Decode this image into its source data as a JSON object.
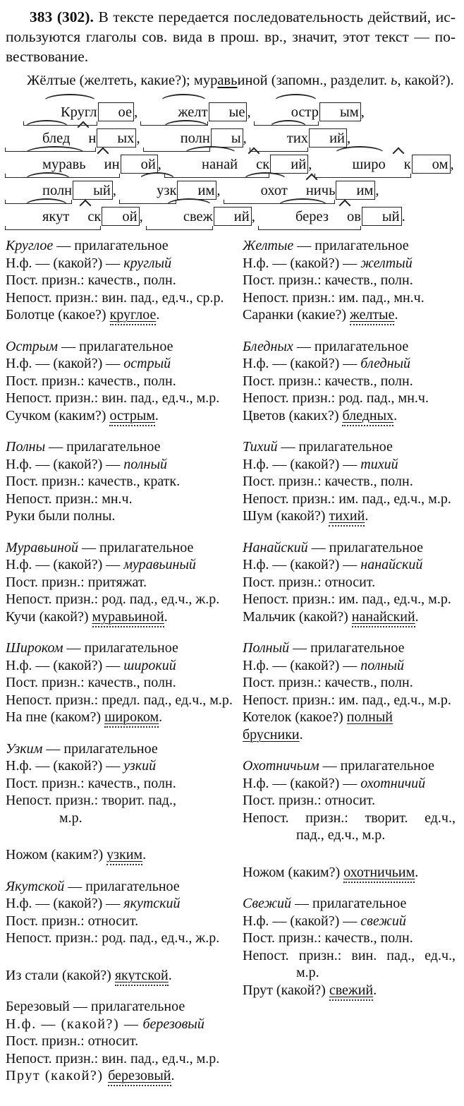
{
  "page": {
    "background": "#ffffff",
    "text_color": "#111111"
  },
  "intro": {
    "number": "383 (302).",
    "lines": [
      " В тексте передается последовательность действий, ис-",
      "пользуются глаголы сов. вида в прош. вр., значит, этот текст — по-",
      "вествование."
    ]
  },
  "hint": {
    "segments": [
      {
        "t": "Жёлтые (желтеть, какие?); мур"
      },
      {
        "t": "ав",
        "u": true
      },
      {
        "t": "ь",
        "u": true
      },
      {
        "t": "иной (запомн., разделит. "
      },
      {
        "t": "ь",
        "i": true
      },
      {
        "t": ", какой?)."
      }
    ]
  },
  "morph_words": {
    "items": [
      {
        "parts": [
          [
            "Кругл",
            "root"
          ],
          [
            "ое",
            "end"
          ]
        ],
        "sep": ", "
      },
      {
        "parts": [
          [
            "желт",
            "root"
          ],
          [
            "ые",
            "end"
          ]
        ],
        "sep": ", "
      },
      {
        "parts": [
          [
            "остр",
            "root"
          ],
          [
            "ым",
            "end"
          ]
        ],
        "sep": ", "
      },
      {
        "parts": [
          [
            "блед",
            "root"
          ],
          [
            "н",
            "suf"
          ],
          [
            "ых",
            "end"
          ]
        ],
        "sep": ", "
      },
      {
        "parts": [
          [
            "полн",
            "root"
          ],
          [
            "ы",
            "end"
          ]
        ],
        "sep": ", "
      },
      {
        "parts": [
          [
            "тих",
            "root"
          ],
          [
            "ий",
            "end"
          ]
        ],
        "sep": ", "
      },
      {
        "parts": [
          [
            "муравь",
            "root"
          ],
          [
            "ин",
            "suf"
          ],
          [
            "ой",
            "end"
          ]
        ],
        "sep": ", "
      },
      {
        "parts": [
          [
            "нанай",
            "root"
          ],
          [
            "ск",
            "suf"
          ],
          [
            "ий",
            "end"
          ]
        ],
        "sep": ", "
      },
      {
        "parts": [
          [
            "широ",
            "root"
          ],
          [
            "к",
            "suf"
          ],
          [
            "ом",
            "end"
          ]
        ],
        "sep": ", "
      },
      {
        "parts": [
          [
            "полн",
            "root"
          ],
          [
            "ый",
            "end"
          ]
        ],
        "sep": ", "
      },
      {
        "parts": [
          [
            "узк",
            "root"
          ],
          [
            "им",
            "end"
          ]
        ],
        "sep": ", "
      },
      {
        "parts": [
          [
            "охот",
            "root"
          ],
          [
            "ничь",
            "suf"
          ],
          [
            "им",
            "end"
          ]
        ],
        "sep": ", "
      },
      {
        "parts": [
          [
            "якут",
            "root"
          ],
          [
            "ск",
            "suf"
          ],
          [
            "ой",
            "end"
          ]
        ],
        "sep": ", "
      },
      {
        "parts": [
          [
            "свеж",
            "root"
          ],
          [
            "ий",
            "end"
          ]
        ],
        "sep": ", "
      },
      {
        "parts": [
          [
            "берез",
            "root"
          ],
          [
            "ов",
            "suf"
          ],
          [
            "ый",
            "end"
          ]
        ],
        "sep": "."
      }
    ]
  },
  "analysis": {
    "left": [
      {
        "word": "Круглое",
        "pos": "— прилагательное",
        "nf_label": "Н.ф. — (какой?) —",
        "nf": "круглый",
        "attrs": [
          {
            "t": "Пост. призн.: качеств., полн."
          },
          {
            "t": "Непост. призн.: вин. пад., ед.ч., ср.р."
          }
        ],
        "example": {
          "pre": "Болотце (какое?) ",
          "wavy": "круглое",
          "post": "."
        }
      },
      {
        "word": "Острым",
        "pos": "— прилагательное",
        "nf_label": "Н.ф. — (какой?) —",
        "nf": "острый",
        "attrs": [
          {
            "t": "Пост. призн.: качеств., полн."
          },
          {
            "t": "Непост. призн.: вин. пад., ед.ч., м.р."
          }
        ],
        "example": {
          "pre": "Сучком (каким?) ",
          "wavy": "острым",
          "post": "."
        }
      },
      {
        "word": "Полны",
        "pos": "— прилагательное",
        "nf_label": "Н.ф. — (какой?) —",
        "nf": "полный",
        "attrs": [
          {
            "t": "Пост. призн.: качеств., кратк."
          },
          {
            "t": "Непост. призн.: мн.ч."
          }
        ],
        "example": {
          "pre": "Руки были полны.",
          "wavy": "",
          "post": ""
        }
      },
      {
        "word": "Муравьиной",
        "pos": "— прилагательное",
        "nf_label": "Н.ф. — (какой?) —",
        "nf": "муравьиный",
        "attrs": [
          {
            "t": "Пост. призн.: притяжат."
          },
          {
            "t": "Непост. призн.: род. пад., ед.ч., ж.р."
          }
        ],
        "example": {
          "pre": "Кучи (какой?) ",
          "wavy": "муравьиной",
          "post": "."
        }
      },
      {
        "word": "Широком",
        "pos": "— прилагательное",
        "nf_label": "Н.ф. — (какой?) —",
        "nf": "широкий",
        "attrs": [
          {
            "t": "Пост. призн.: качеств., полн."
          },
          {
            "t": "Непост. призн.: предл. пад., ед.ч., м.р."
          }
        ],
        "example": {
          "pre": "На пне (каком?) ",
          "wavy": "широком",
          "post": "."
        }
      },
      {
        "word": "Узким",
        "pos": "— прилагательное",
        "nf_label": "Н.ф. — (какой?) —",
        "nf": "узкий",
        "attrs": [
          {
            "t": "Пост. призн.: качеств., полн."
          },
          {
            "t": "Непост. призн.: творит. пад.,",
            "wrap": "м.р."
          }
        ],
        "example": {
          "gap": true,
          "pre": "Ножом (каким?) ",
          "wavy": "узким",
          "post": "."
        }
      },
      {
        "word": "Якутской",
        "pos": "— прилагательное",
        "nf_label": "Н.ф. — (какой?) —",
        "nf": "якутский",
        "attrs": [
          {
            "t": "Пост. призн.: относит."
          },
          {
            "t": "Непост. призн.: род. пад., ед.ч., ж.р."
          }
        ],
        "example": {
          "gap": true,
          "pre": "Из стали (какой?) ",
          "wavy": "якутской",
          "post": "."
        }
      },
      {
        "word": "Березовый",
        "pos": "— прилагательное",
        "italic": false,
        "spaced": true,
        "nf_label": "Н.ф. — (какой?) —",
        "nf": "березовый",
        "attrs": [
          {
            "t": "Пост. призн.: относит."
          },
          {
            "t": "Непост. призн.: вин. пад., ед.ч., м.р."
          }
        ],
        "example": {
          "pre": "Прут (какой?) ",
          "wavy": "березовый",
          "post": "."
        }
      }
    ],
    "right": [
      {
        "word": "Желтые",
        "pos": "— прилагательное",
        "nf_label": "Н.ф. — (какой?) —",
        "nf": "желтый",
        "attrs": [
          {
            "t": "Пост. призн.: качеств., полн."
          },
          {
            "t": "Непост. призн.: им. пад., мн.ч."
          }
        ],
        "example": {
          "pre": "Саранки (какие?) ",
          "wavy": "желтые",
          "post": "."
        }
      },
      {
        "word": "Бледных",
        "pos": "— прилагательное",
        "nf_label": "Н.ф. — (какой?) —",
        "nf": "бледный",
        "attrs": [
          {
            "t": "Пост. призн.: качеств., полн."
          },
          {
            "t": "Непост. призн.: род. пад., мн.ч."
          }
        ],
        "example": {
          "pre": "Цветов (каких?) ",
          "wavy": "бледных",
          "post": "."
        }
      },
      {
        "word": "Тихий",
        "pos": "— прилагательное",
        "nf_label": "Н.ф. — (какой?) —",
        "nf": "тихий",
        "attrs": [
          {
            "t": "Пост. призн.: качеств., полн."
          },
          {
            "t": "Непост. призн.: им. пад., ед.ч., м.р."
          }
        ],
        "example": {
          "pre": "Шум (какой?) ",
          "wavy": "тихий",
          "post": "."
        }
      },
      {
        "word": "Нанайский",
        "pos": "— прилагательное",
        "nf_label": "Н.ф. — (какой?) —",
        "nf": "нанайский",
        "attrs": [
          {
            "t": "Пост. призн.: относит."
          },
          {
            "t": "Непост. призн.: им. пад., ед.ч., м.р."
          }
        ],
        "example": {
          "pre": "Мальчик (какой?) ",
          "wavy": "нанайский",
          "post": "."
        }
      },
      {
        "word": "Полный",
        "pos": "— прилагательное",
        "nf_label": "Н.ф. — (какой?) —",
        "nf": "полный",
        "attrs": [
          {
            "t": "Пост. призн.: качеств., полн."
          },
          {
            "t": "Непост. призн.: им. пад., ед.ч., м.р."
          }
        ],
        "example": {
          "pre": "Котелок (какое?) ",
          "wavy": "полный брусники",
          "post": "."
        }
      },
      {
        "word": "Охотничьим",
        "pos": "— прилагательное",
        "nf_label": "Н.ф. — (какой?) —",
        "nf": "охотничий",
        "attrs": [
          {
            "t": "Пост. призн.: относит."
          },
          {
            "t": "Непост. призн.: творит. ед.ч.,",
            "justify": true,
            "wrap": "пад., ед.ч., м.р."
          }
        ],
        "example": {
          "gap": true,
          "pre": "Ножом (каким?) ",
          "wavy": "охотничьим",
          "post": "."
        }
      },
      {
        "word": "Свежий",
        "pos": "— прилагательное",
        "nf_label": "Н.ф. — (какой?) —",
        "nf": "свежий",
        "attrs": [
          {
            "t": "Пост. призн.: качеств., полн."
          },
          {
            "t": "Непост. призн.: вин. пад., ед.ч.,",
            "justify": true,
            "wrap": "м.р."
          }
        ],
        "example": {
          "pre": "Прут (какой?) ",
          "wavy": "свежий",
          "post": "."
        }
      }
    ]
  }
}
